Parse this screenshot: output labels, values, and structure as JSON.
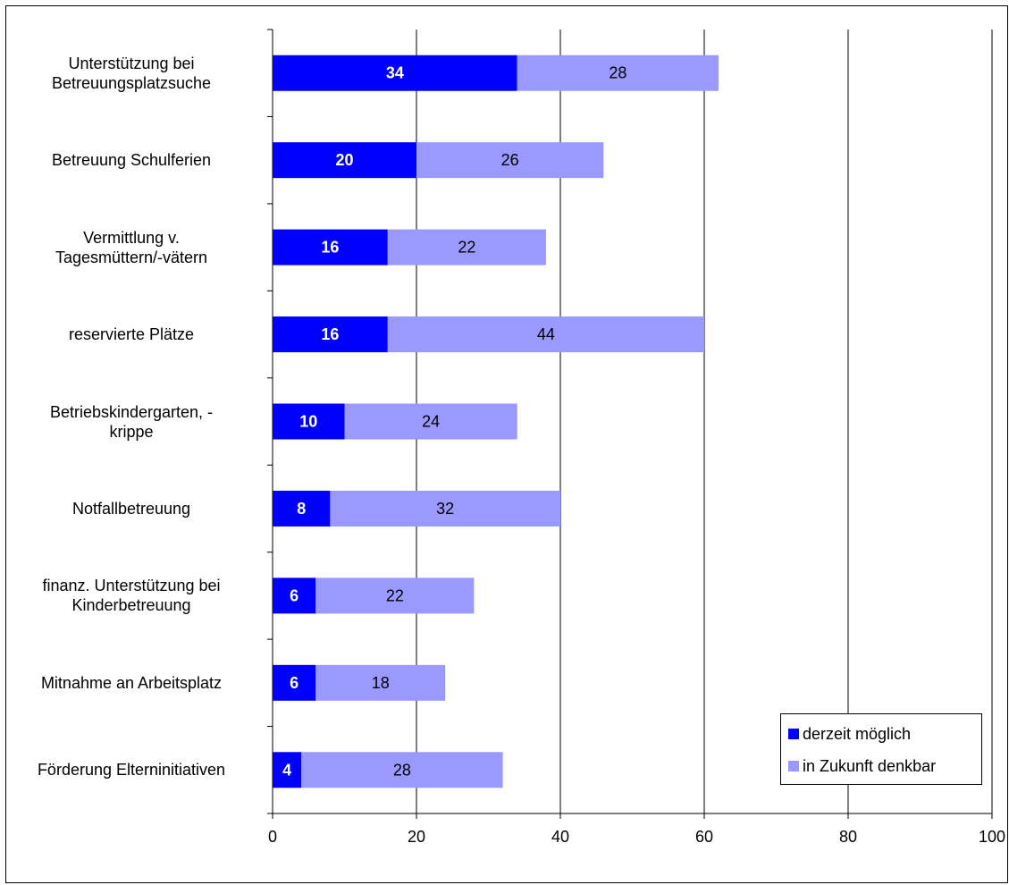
{
  "chart_data": {
    "type": "bar",
    "orientation": "horizontal",
    "stacked": true,
    "categories": [
      "Unterstützung bei Betreuungsplatzsuche",
      "Betreuung Schulferien",
      "Vermittlung v. Tagesmüttern/-vätern",
      "reservierte Plätze",
      "Betriebskindergarten, -krippe",
      "Notfallbetreuung",
      "finanz. Unterstützung bei Kinderbetreuung",
      "Mitnahme an Arbeitsplatz",
      "Förderung Elterninitiativen"
    ],
    "category_lines": [
      [
        "Unterstützung bei",
        "Betreuungsplatzsuche"
      ],
      [
        "Betreuung Schulferien"
      ],
      [
        "Vermittlung v.",
        "Tagesmüttern/-vätern"
      ],
      [
        "reservierte Plätze"
      ],
      [
        "Betriebskindergarten, -",
        "krippe"
      ],
      [
        "Notfallbetreuung"
      ],
      [
        "finanz. Unterstützung bei",
        "Kinderbetreuung"
      ],
      [
        "Mitnahme an Arbeitsplatz"
      ],
      [
        "Förderung Elterninitiativen"
      ]
    ],
    "series": [
      {
        "name": "derzeit möglich",
        "values": [
          34,
          20,
          16,
          16,
          10,
          8,
          6,
          6,
          4
        ],
        "color": "#0000ff"
      },
      {
        "name": "in Zukunft denkbar",
        "values": [
          28,
          26,
          22,
          44,
          24,
          32,
          22,
          18,
          28
        ],
        "color": "#9999ff"
      }
    ],
    "xlim": [
      0,
      100
    ],
    "xticks": [
      "0",
      "20",
      "40",
      "60",
      "80",
      "100"
    ],
    "xtick_values": [
      0,
      20,
      40,
      60,
      80,
      100
    ],
    "title": "",
    "xlabel": "",
    "ylabel": "",
    "grid": true,
    "legend": "bottom-right"
  }
}
